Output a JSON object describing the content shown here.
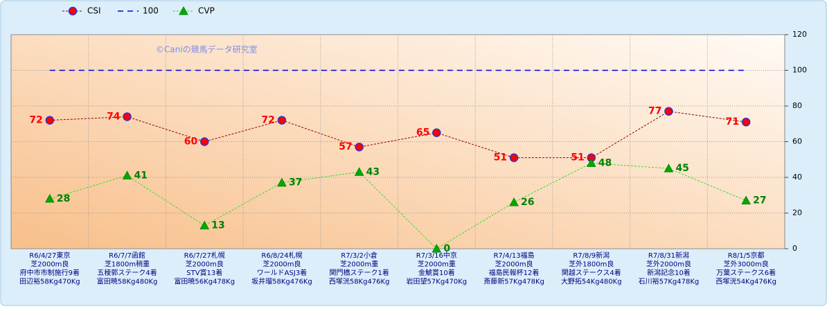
{
  "chart_data": {
    "type": "line",
    "watermark": "©Caniの競馬データ研究室",
    "categories": [
      [
        "R6/4/27東京",
        "芝2000m良",
        "府中市市制施行9着",
        "田辺裕58Kg470Kg"
      ],
      [
        "R6/7/7函館",
        "芝1800m稍重",
        "五稜郭ステーク4着",
        "富田暁58Kg480Kg"
      ],
      [
        "R6/7/27札幌",
        "芝2000m良",
        "STV賞13着",
        "富田暁56Kg478Kg"
      ],
      [
        "R6/8/24札幌",
        "芝2000m良",
        "ワールドASJ3着",
        "坂井瑠58Kg476Kg"
      ],
      [
        "R7/3/2小倉",
        "芝2000m重",
        "関門橋ステーク1着",
        "西塚洸58Kg476Kg"
      ],
      [
        "R7/3/16中京",
        "芝2000m重",
        "金鯱賞10着",
        "岩田望57Kg470Kg"
      ],
      [
        "R7/4/13福島",
        "芝2000m良",
        "福島民報杯12着",
        "斎藤新57Kg478Kg"
      ],
      [
        "R7/8/9新潟",
        "芝外1800m良",
        "関越ステークス4着",
        "大野拓54Kg480Kg"
      ],
      [
        "R7/8/31新潟",
        "芝外2000m良",
        "新潟記念10着",
        "石川裕57Kg478Kg"
      ],
      [
        "R8/1/5京都",
        "芝外3000m良",
        "万葉ステークス6着",
        "西塚洸54Kg476Kg"
      ]
    ],
    "series": [
      {
        "name": "CSI",
        "color": "#8b0000",
        "dash": "3,2",
        "marker": "circle",
        "marker_color": "#ff0000",
        "marker_stroke": "#3333cc",
        "label_color": "#ff0000",
        "label_side": "left",
        "values": [
          72,
          74,
          60,
          72,
          57,
          65,
          51,
          51,
          77,
          71
        ]
      },
      {
        "name": "100",
        "color": "#0000dd",
        "dash": "8,6",
        "marker": "none",
        "values": [
          100,
          100,
          100,
          100,
          100,
          100,
          100,
          100,
          100,
          100
        ]
      },
      {
        "name": "CVP",
        "color": "#33dd33",
        "dash": "3,2",
        "marker": "triangle",
        "marker_color": "#00aa00",
        "marker_stroke": "#008800",
        "label_color": "#008000",
        "label_side": "right",
        "values": [
          28,
          41,
          13,
          37,
          43,
          0,
          26,
          48,
          45,
          27
        ]
      }
    ],
    "ylim": [
      0,
      120
    ],
    "yticks": [
      0,
      20,
      40,
      60,
      80,
      100,
      120
    ],
    "grid": true
  }
}
